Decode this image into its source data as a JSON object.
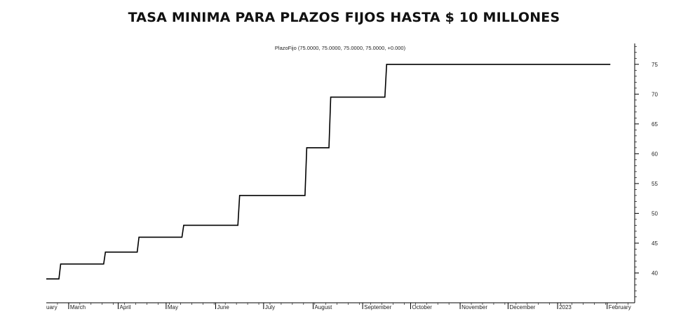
{
  "title": "TASA MINIMA PARA PLAZOS FIJOS HASTA $ 10 MILLONES",
  "chart_data": {
    "type": "line",
    "title": "TASA MINIMA PARA PLAZOS FIJOS HASTA $ 10 MILLONES",
    "legend_text": "PlazoFijo (75.0000, 75.0000, 75.0000, 75.0000, +0.000)",
    "step": true,
    "x_range": [
      "2022-02-15",
      "2023-02-20"
    ],
    "ylim": [
      35,
      78.5
    ],
    "y_axis_side": "right",
    "y_ticks": [
      40,
      45,
      50,
      55,
      60,
      65,
      70,
      75
    ],
    "x_ticks": [
      {
        "date": "2022-02-15",
        "label": "uary"
      },
      {
        "date": "2022-03-01",
        "label": "March"
      },
      {
        "date": "2022-04-01",
        "label": "April"
      },
      {
        "date": "2022-05-01",
        "label": "May"
      },
      {
        "date": "2022-06-01",
        "label": "June"
      },
      {
        "date": "2022-07-01",
        "label": "July"
      },
      {
        "date": "2022-08-01",
        "label": "August"
      },
      {
        "date": "2022-09-01",
        "label": "September"
      },
      {
        "date": "2022-10-01",
        "label": "October"
      },
      {
        "date": "2022-11-01",
        "label": "November"
      },
      {
        "date": "2022-12-01",
        "label": "December"
      },
      {
        "date": "2023-01-01",
        "label": "2023"
      },
      {
        "date": "2023-02-01",
        "label": "February"
      }
    ],
    "series": [
      {
        "name": "PlazoFijo",
        "points": [
          {
            "x": "2022-02-15",
            "y": 39
          },
          {
            "x": "2022-02-24",
            "y": 41.5
          },
          {
            "x": "2022-03-24",
            "y": 43.5
          },
          {
            "x": "2022-04-14",
            "y": 46
          },
          {
            "x": "2022-05-12",
            "y": 48
          },
          {
            "x": "2022-06-16",
            "y": 53
          },
          {
            "x": "2022-07-28",
            "y": 61
          },
          {
            "x": "2022-08-12",
            "y": 69.5
          },
          {
            "x": "2022-09-16",
            "y": 75
          },
          {
            "x": "2023-02-03",
            "y": 75
          }
        ]
      }
    ]
  }
}
